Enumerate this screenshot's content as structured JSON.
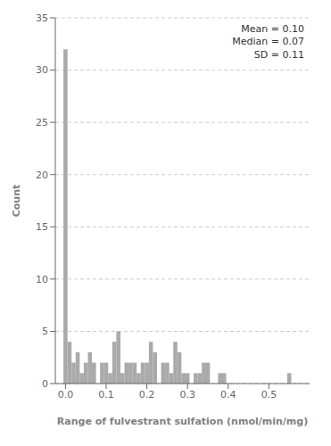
{
  "chart_data": {
    "type": "histogram",
    "xlabel": "Range of fulvestrant sulfation (nmol/min/mg)",
    "ylabel": "Count",
    "annotation": "Mean = 0.10\nMedian = 0.07\nSD = 0.11",
    "bins": [
      -0.005,
      0.005,
      0.015,
      0.025,
      0.035,
      0.045,
      0.055,
      0.065,
      0.075,
      0.085,
      0.095,
      0.105,
      0.115,
      0.125,
      0.135,
      0.145,
      0.155,
      0.165,
      0.175,
      0.185,
      0.195,
      0.205,
      0.215,
      0.225,
      0.235,
      0.245,
      0.255,
      0.265,
      0.275,
      0.285,
      0.305,
      0.315,
      0.325,
      0.335,
      0.355,
      0.365,
      0.375,
      0.395,
      0.545,
      0.555,
      0.565
    ],
    "counts": [
      32,
      4,
      2,
      3,
      1,
      2,
      3,
      2,
      0,
      2,
      2,
      1,
      4,
      5,
      1,
      2,
      2,
      2,
      1,
      2,
      2,
      4,
      3,
      0,
      2,
      2,
      1,
      4,
      3,
      1,
      0,
      1,
      1,
      2,
      0,
      0,
      1,
      0,
      1,
      0
    ],
    "color": "#aaaaaa",
    "xlim": [
      -0.025,
      0.6
    ],
    "xticks": [
      {
        "value": 0.0,
        "label": "0.0"
      },
      0.1,
      0.2,
      0.3,
      0.4,
      0.5
    ],
    "ylim": [
      0,
      35
    ],
    "yticks": [
      0,
      5,
      10,
      15,
      20,
      25,
      30,
      35
    ],
    "grid": "y"
  }
}
